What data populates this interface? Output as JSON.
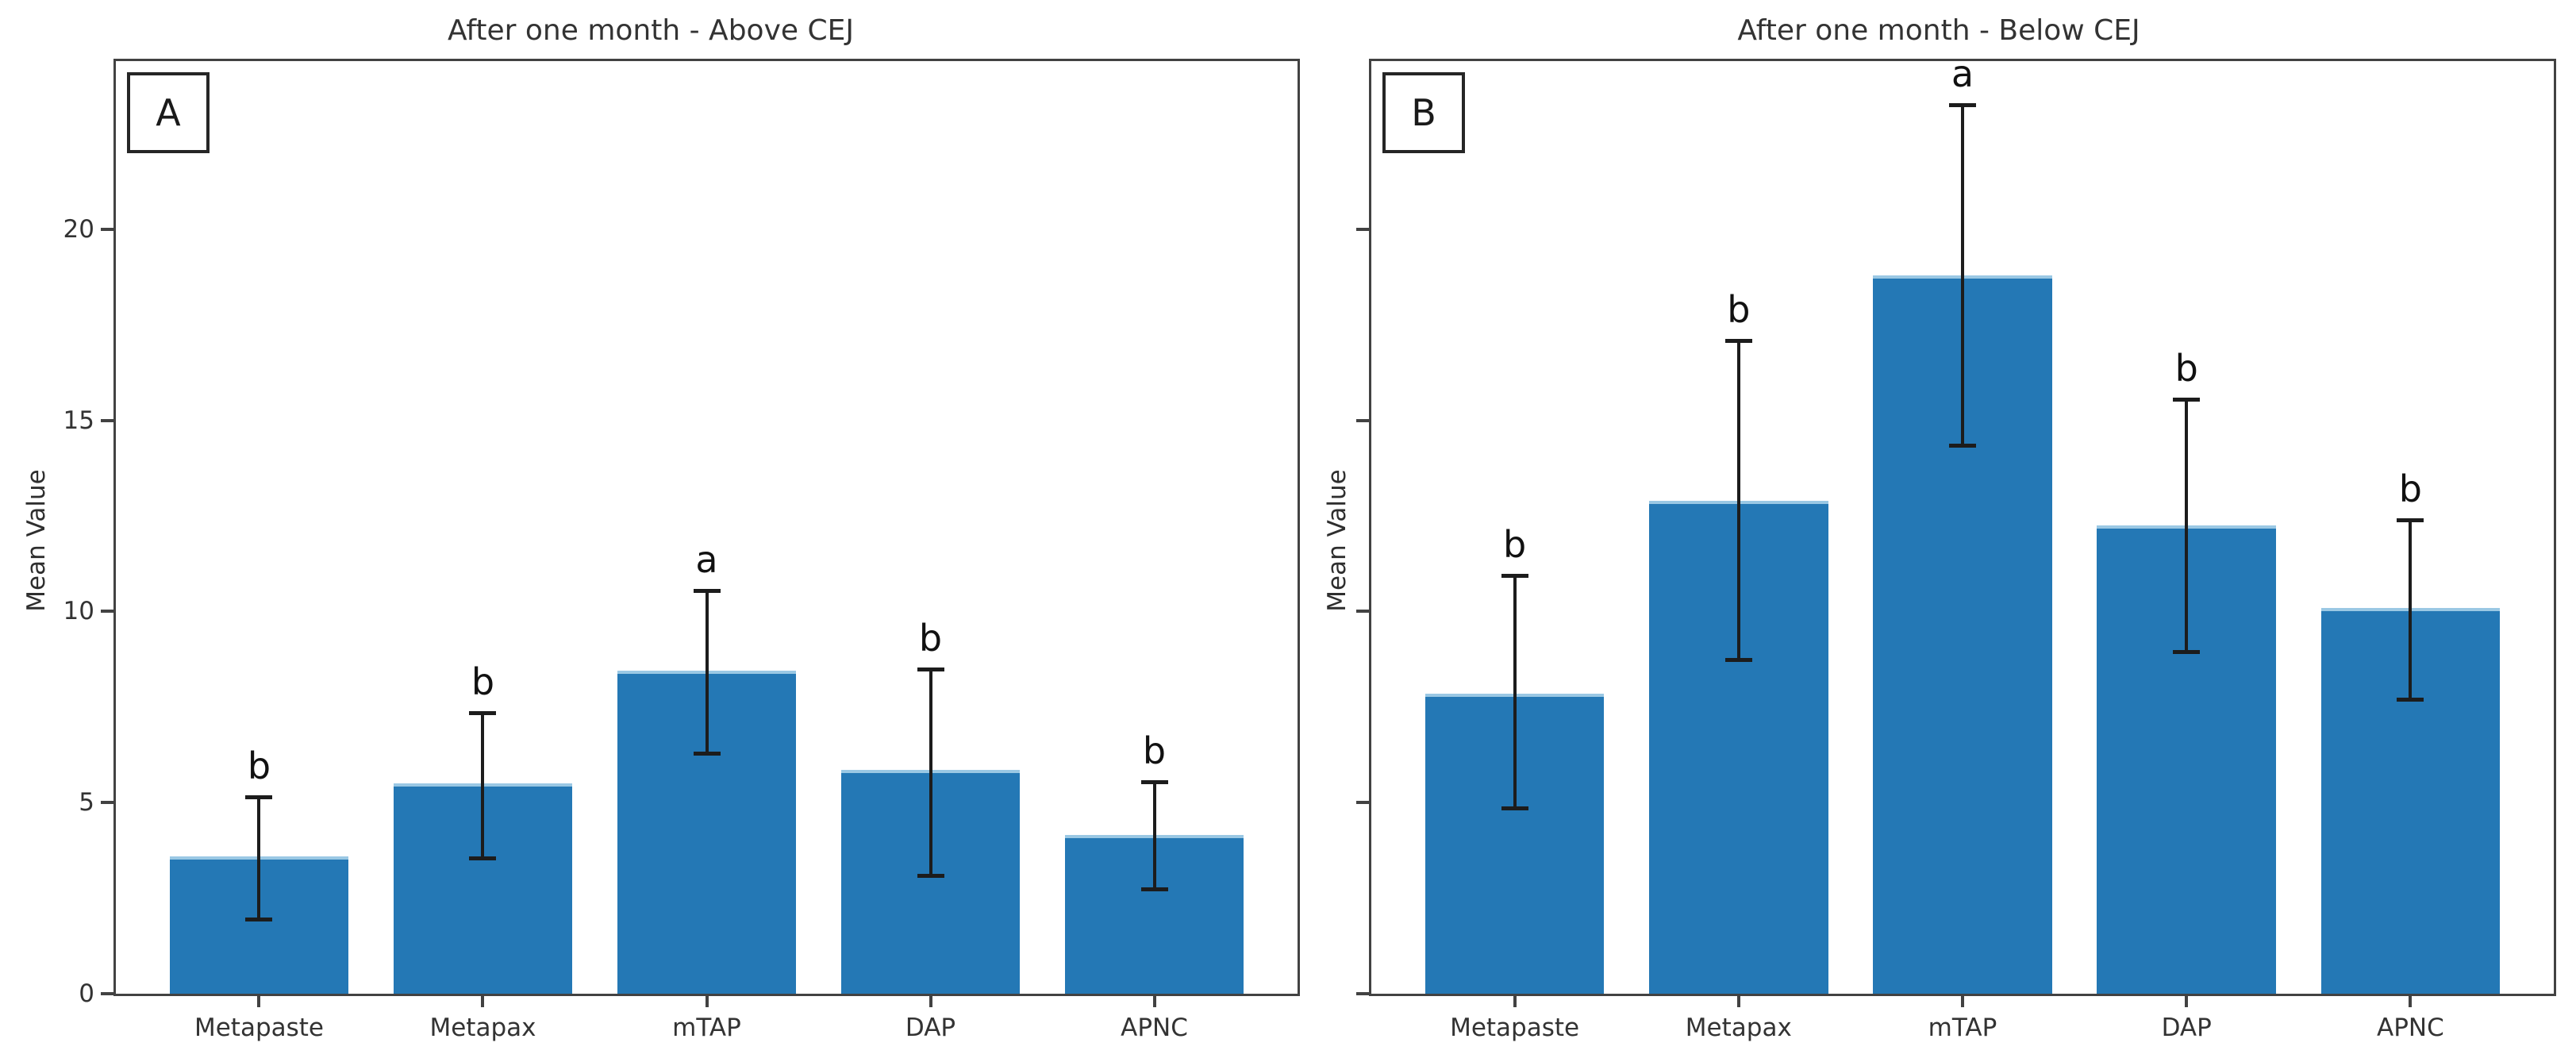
{
  "figure": {
    "background": "#ffffff"
  },
  "colors": {
    "bar_fill": "#2478b5",
    "bar_top_edge": "#9ac8e4",
    "error_bar": "#1c1c1c",
    "spine": "#424242",
    "text": "#333333"
  },
  "chart_data": [
    {
      "type": "bar",
      "panel_label": "A",
      "title": "After one month - Above CEJ",
      "ylabel": "Mean Value",
      "categories": [
        "Metapaste",
        "Metapax",
        "mTAP",
        "DAP",
        "APNC"
      ],
      "values": [
        3.6,
        5.5,
        8.45,
        5.85,
        4.15
      ],
      "error_upper": [
        1.55,
        1.85,
        2.1,
        2.65,
        1.4
      ],
      "error_lower": [
        1.65,
        1.95,
        2.15,
        2.75,
        1.4
      ],
      "sig_letters": [
        "b",
        "b",
        "a",
        "b",
        "b"
      ],
      "ylim": [
        0,
        24.4
      ],
      "yticks": [
        0,
        5,
        10,
        15,
        20
      ],
      "show_ytick_labels": true,
      "grid": false,
      "legend": "none"
    },
    {
      "type": "bar",
      "panel_label": "B",
      "title": "After one month - Below CEJ",
      "ylabel": "Mean Value",
      "categories": [
        "Metapaste",
        "Metapax",
        "mTAP",
        "DAP",
        "APNC"
      ],
      "values": [
        7.85,
        12.9,
        18.8,
        12.25,
        10.1
      ],
      "error_upper": [
        3.1,
        4.2,
        4.45,
        3.3,
        2.3
      ],
      "error_lower": [
        3.0,
        4.15,
        4.45,
        3.3,
        2.4
      ],
      "sig_letters": [
        "b",
        "b",
        "a",
        "b",
        "b"
      ],
      "ylim": [
        0,
        24.4
      ],
      "yticks": [
        0,
        5,
        10,
        15,
        20
      ],
      "show_ytick_labels": false,
      "grid": false,
      "legend": "none"
    }
  ]
}
